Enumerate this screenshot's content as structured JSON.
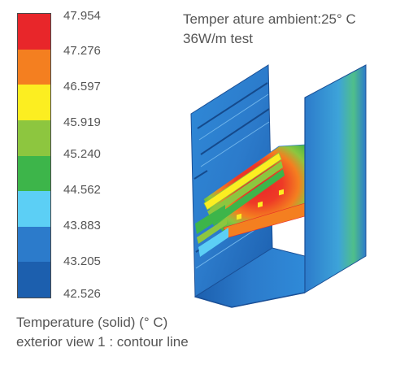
{
  "title": {
    "line1": "Temper ature ambient:25° C",
    "line2": "36W/m test"
  },
  "caption": {
    "line1": "Temperature (solid) (° C)",
    "line2": "exterior view 1 : contour line"
  },
  "legend": {
    "values": [
      "47.954",
      "47.276",
      "46.597",
      "45.919",
      "45.240",
      "44.562",
      "43.883",
      "43.205",
      "42.526"
    ],
    "colors": [
      "#e8262a",
      "#f47f20",
      "#fcee21",
      "#8dc63f",
      "#3db54a",
      "#5ccff5",
      "#2c7bcb",
      "#1c5fae"
    ]
  },
  "colors": {
    "hot": "#e8262a",
    "warm": "#f47f20",
    "mid": "#fcee21",
    "cool_green": "#3db54a",
    "cold": "#2c7bcb",
    "deep": "#1c5fae"
  }
}
